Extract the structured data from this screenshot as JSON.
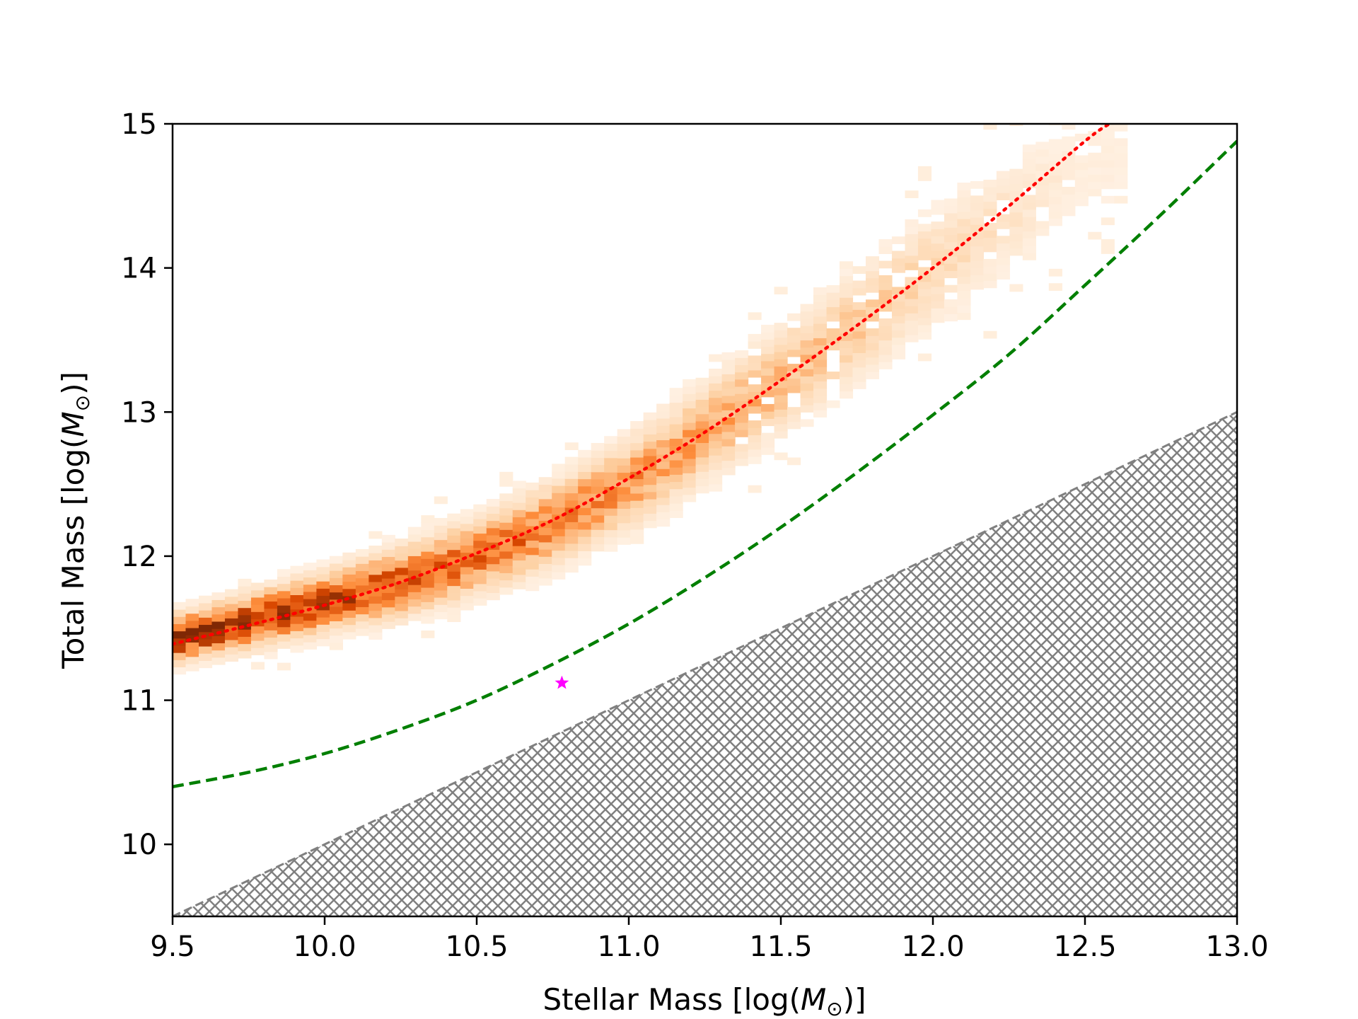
{
  "chart_data": {
    "type": "heatmap",
    "title": "",
    "xlabel": "Stellar Mass [log(",
    "xlabel_symbol": "M",
    "xlabel_sub": "⊙",
    "xlabel_end": ")]",
    "ylabel": "Total Mass [log(",
    "ylabel_symbol": "M",
    "ylabel_sub": "⊙",
    "ylabel_end": ")]",
    "xlim": [
      9.5,
      13.0
    ],
    "ylim": [
      9.5,
      15.0
    ],
    "x_ticks": [
      9.5,
      10.0,
      10.5,
      11.0,
      11.5,
      12.0,
      12.5,
      13.0
    ],
    "x_tick_labels": [
      "9.5",
      "10.0",
      "10.5",
      "11.0",
      "11.5",
      "12.0",
      "12.5",
      "13.0"
    ],
    "y_ticks": [
      10,
      11,
      12,
      13,
      14,
      15
    ],
    "y_tick_labels": [
      "10",
      "11",
      "12",
      "13",
      "14",
      "15"
    ],
    "grid": false,
    "histogram_ridge": {
      "description_points_x": [
        9.5,
        9.75,
        10.0,
        10.25,
        10.5,
        10.75,
        11.0,
        11.25,
        11.5,
        11.75,
        12.0,
        12.25,
        12.5
      ],
      "description_points_y": [
        11.42,
        11.55,
        11.68,
        11.82,
        12.0,
        12.22,
        12.5,
        12.85,
        13.22,
        13.6,
        14.0,
        14.35,
        14.75
      ],
      "color": "#a33a03",
      "colormap": [
        "#fff5eb",
        "#fdd0a2",
        "#fd8d3c",
        "#d94801",
        "#7f2704"
      ]
    },
    "series": [
      {
        "style": "dotted",
        "color": "#ff0000",
        "x": [
          9.5,
          9.75,
          10.0,
          10.25,
          10.5,
          10.75,
          11.0,
          11.25,
          11.5,
          11.75,
          12.0,
          12.25,
          12.5,
          12.58
        ],
        "y": [
          11.39,
          11.52,
          11.66,
          11.82,
          12.02,
          12.25,
          12.54,
          12.86,
          13.22,
          13.6,
          14.0,
          14.43,
          14.88,
          15.0
        ]
      },
      {
        "style": "dashed",
        "color": "#007f00",
        "x": [
          9.5,
          9.75,
          10.0,
          10.25,
          10.5,
          10.75,
          11.0,
          11.25,
          11.5,
          11.75,
          12.0,
          12.25,
          12.5,
          12.75,
          13.0
        ],
        "y": [
          10.4,
          10.5,
          10.63,
          10.8,
          11.0,
          11.25,
          11.53,
          11.85,
          12.2,
          12.58,
          12.98,
          13.4,
          13.88,
          14.37,
          14.88
        ]
      },
      {
        "style": "dashed",
        "color": "#808080",
        "x": [
          9.5,
          13.0
        ],
        "y": [
          9.5,
          13.0
        ]
      }
    ],
    "hatched_region": {
      "description": "excluded region below total mass = stellar mass",
      "color": "#808080",
      "polygon_x": [
        9.5,
        13.0,
        13.0,
        9.5
      ],
      "polygon_y": [
        9.5,
        13.0,
        9.5,
        9.5
      ]
    },
    "points": [
      {
        "marker": "star",
        "color": "#ff00ff",
        "x": 10.78,
        "y": 11.12
      }
    ]
  }
}
